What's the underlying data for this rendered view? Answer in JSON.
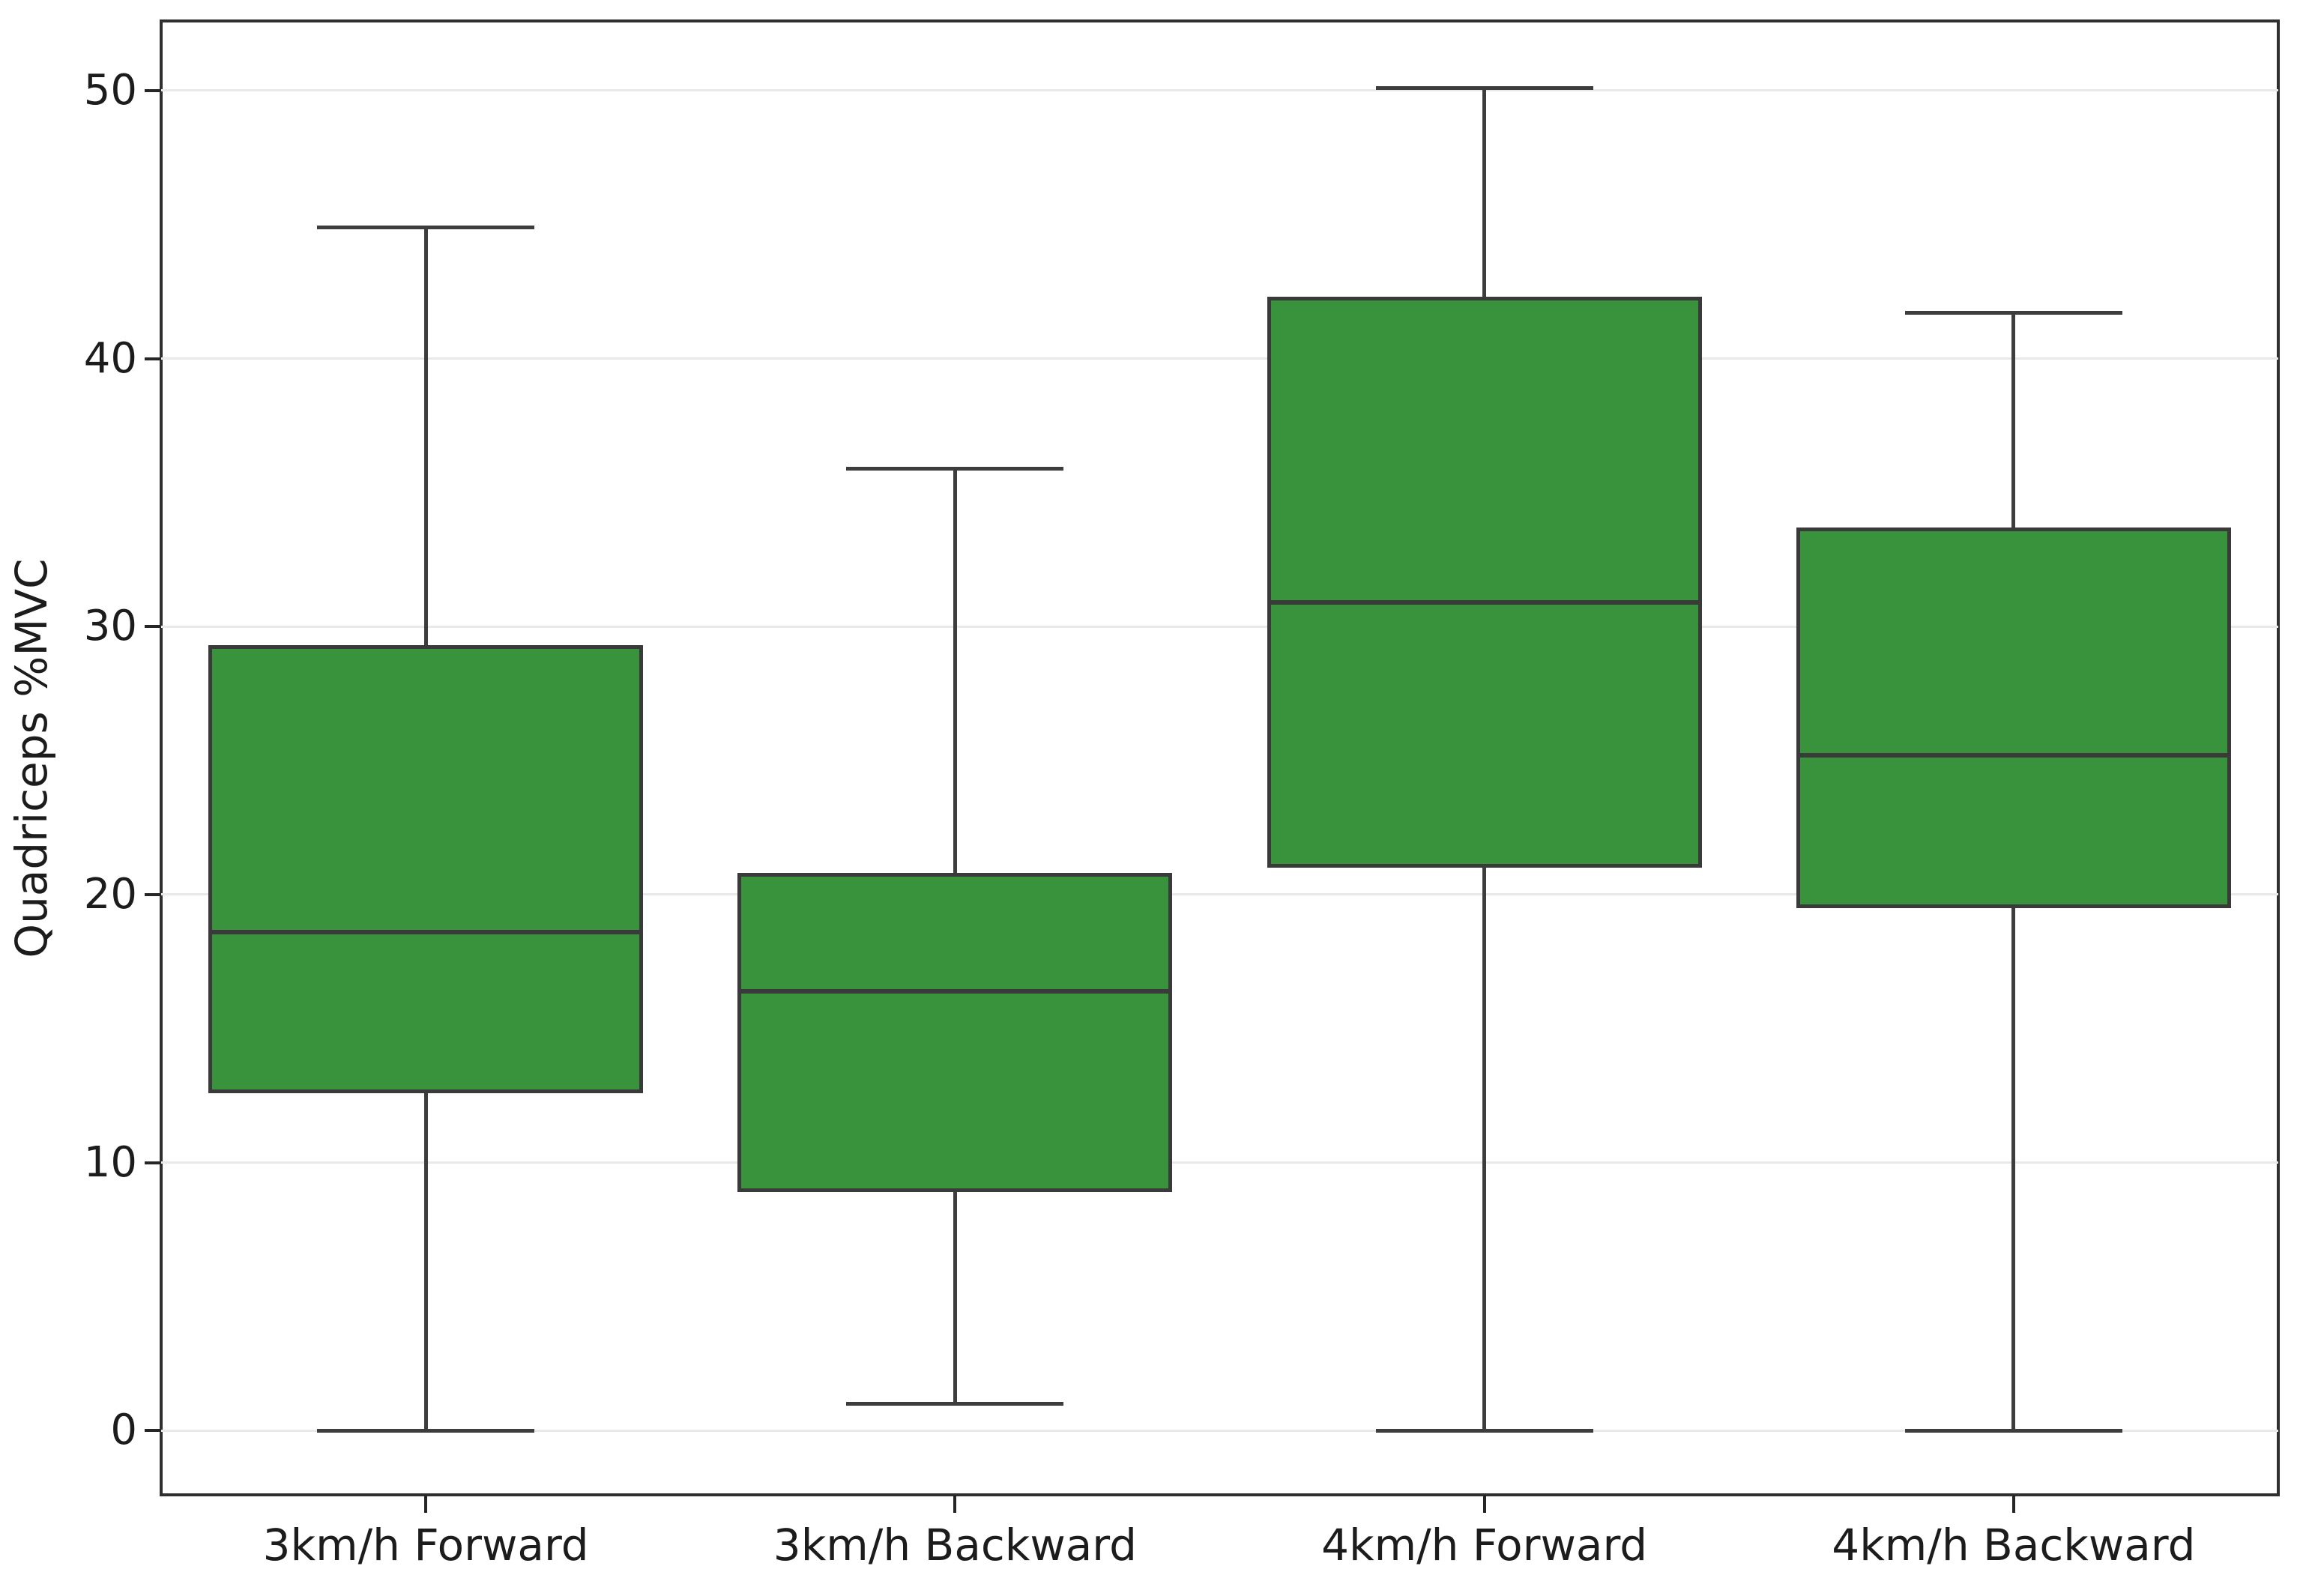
{
  "chart_data": {
    "type": "box",
    "title": "",
    "xlabel": "",
    "ylabel": "Quadriceps %MVC",
    "categories": [
      "3km/h Forward",
      "3km/h Backward",
      "4km/h Forward",
      "4km/h Backward"
    ],
    "series": [
      {
        "name": "3km/h Forward",
        "whisker_low": 0.0,
        "q1": 12.6,
        "median": 18.6,
        "q3": 29.3,
        "whisker_high": 44.9
      },
      {
        "name": "3km/h Backward",
        "whisker_low": 1.0,
        "q1": 8.9,
        "median": 16.4,
        "q3": 20.8,
        "whisker_high": 35.9
      },
      {
        "name": "4km/h Forward",
        "whisker_low": 0.0,
        "q1": 21.0,
        "median": 30.9,
        "q3": 42.3,
        "whisker_high": 50.1
      },
      {
        "name": "4km/h Backward",
        "whisker_low": 0.0,
        "q1": 19.5,
        "median": 25.2,
        "q3": 33.7,
        "whisker_high": 41.7
      }
    ],
    "yticks": [
      0,
      10,
      20,
      30,
      40,
      50
    ],
    "ylim": [
      -2.4,
      52.6
    ],
    "grid": "horizontal",
    "legend": "none",
    "box_fill_color": "#39923C",
    "box_edge_color": "#3a3a3a",
    "spine_color": "#2f2f2f",
    "grid_color": "#e9e9e9",
    "text_color": "#1c1c1c"
  }
}
